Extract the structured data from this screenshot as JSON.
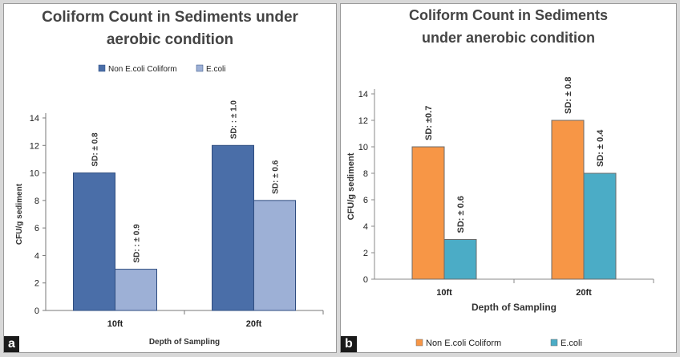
{
  "chart_data": [
    {
      "type": "bar",
      "panel_tag": "a",
      "title_lines": [
        "Coliform Count in Sediments under",
        "aerobic condition"
      ],
      "xlabel": "Depth of Sampling",
      "ylabel": "CFU/g sediment",
      "ylim": [
        0,
        14
      ],
      "yticks": [
        "0",
        "2",
        "4",
        "6",
        "8",
        "10",
        "12",
        "14"
      ],
      "categories": [
        "10ft",
        "20ft"
      ],
      "legend_position": "top",
      "series": [
        {
          "name": "Non E.coli Coliform",
          "color": "#4a6ea8",
          "values": [
            10,
            12
          ],
          "sd_labels": [
            "SD: ± 0.8",
            "SD: : ± 1.0"
          ]
        },
        {
          "name": "E.coli",
          "color": "#9db0d6",
          "values": [
            3,
            8
          ],
          "sd_labels": [
            "SD: : ±  0.9",
            "SD: ± 0.6"
          ]
        }
      ]
    },
    {
      "type": "bar",
      "panel_tag": "b",
      "title_lines": [
        "Coliform Count in Sediments",
        "under anerobic condition"
      ],
      "xlabel": "Depth of Sampling",
      "ylabel": "CFU/g sediment",
      "ylim": [
        0,
        14
      ],
      "yticks": [
        "0",
        "2",
        "4",
        "6",
        "8",
        "10",
        "12",
        "14"
      ],
      "categories": [
        "10ft",
        "20ft"
      ],
      "legend_position": "bottom",
      "series": [
        {
          "name": "Non E.coli Coliform",
          "color": "#f79646",
          "values": [
            10,
            12
          ],
          "sd_labels": [
            "SD: ±0.7",
            "SD: ± 0.8"
          ]
        },
        {
          "name": "E.coli",
          "color": "#4bacc6",
          "values": [
            3,
            8
          ],
          "sd_labels": [
            "SD: ± 0.6",
            "SD: ± 0.4"
          ]
        }
      ]
    }
  ]
}
